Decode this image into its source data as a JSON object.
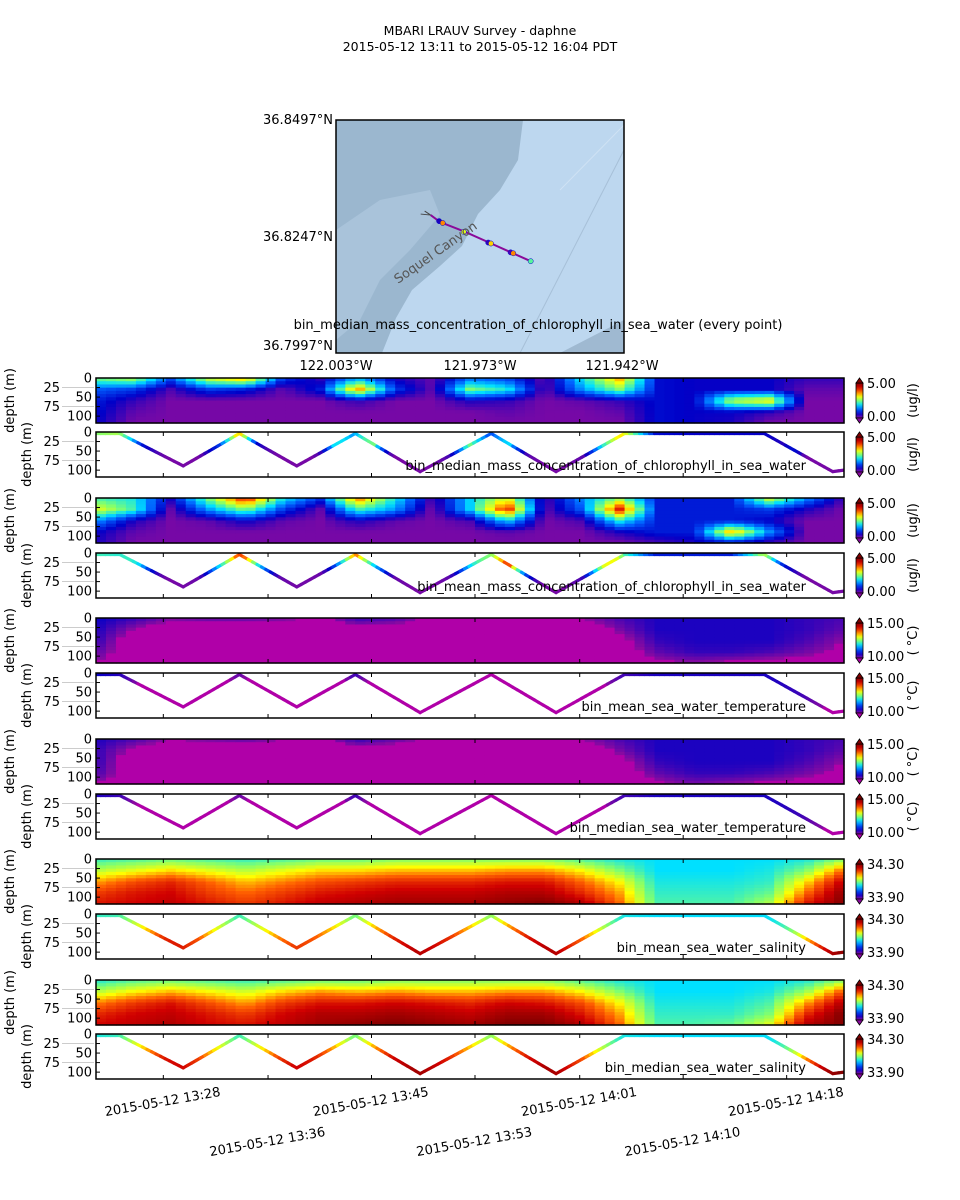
{
  "title": {
    "line1": "MBARI LRAUV Survey - daphne",
    "line2": "2015-05-12 13:11  to  2015-05-12 16:04 PDT"
  },
  "map": {
    "lat_labels": [
      "36.8497°N",
      "36.8247°N",
      "36.7997°N"
    ],
    "lon_labels": [
      "122.003°W",
      "121.973°W",
      "121.942°W"
    ],
    "feature_label": "Soquel Canyon",
    "caption": "bin_median_mass_concentration_of_chlorophyll_in_sea_water (every point)",
    "xlim": [
      -122.0061,
      -121.9416
    ],
    "ylim": [
      36.7997,
      36.8497
    ],
    "track": [
      [
        -121.9849,
        36.8293
      ],
      [
        -121.9828,
        36.8278
      ],
      [
        -121.9772,
        36.8257
      ],
      [
        -121.9716,
        36.8233
      ],
      [
        -121.9667,
        36.8212
      ],
      [
        -121.9625,
        36.8194
      ]
    ],
    "markers": [
      {
        "lon": -121.983,
        "lat": 36.828,
        "value": 0.5
      },
      {
        "lon": -121.9822,
        "lat": 36.8276,
        "value": 3.6
      },
      {
        "lon": -121.9775,
        "lat": 36.8257,
        "value": 3.0
      },
      {
        "lon": -121.972,
        "lat": 36.8234,
        "value": 0.4
      },
      {
        "lon": -121.9714,
        "lat": 36.8232,
        "value": 3.3
      },
      {
        "lon": -121.967,
        "lat": 36.8213,
        "value": 0.3
      },
      {
        "lon": -121.9664,
        "lat": 36.8211,
        "value": 3.6
      },
      {
        "lon": -121.9625,
        "lat": 36.8194,
        "value": 2.3
      }
    ]
  },
  "chart_data": {
    "type": "heatmap",
    "x_unit": "minutes after 13:00 PDT",
    "xlim": [
      22.6,
      82.6
    ],
    "ylim": [
      118,
      0
    ],
    "ylabel": "depth (m)",
    "yticks": [
      0,
      25,
      50,
      75,
      100
    ],
    "xticks": [
      {
        "value": 28.0,
        "label": "2015-05-12 13:28"
      },
      {
        "value": 36.4,
        "label": "2015-05-12 13:36"
      },
      {
        "value": 44.7,
        "label": "2015-05-12 13:45"
      },
      {
        "value": 53.0,
        "label": "2015-05-12 13:53"
      },
      {
        "value": 61.4,
        "label": "2015-05-12 14:01"
      },
      {
        "value": 69.7,
        "label": "2015-05-12 14:10"
      },
      {
        "value": 78.0,
        "label": "2015-05-12 14:18"
      }
    ],
    "colormap": [
      "#8c0aa0",
      "#0000c8",
      "#0060ff",
      "#00e0ff",
      "#80ff70",
      "#ffff00",
      "#ff6000",
      "#d00000",
      "#800000"
    ],
    "track": [
      [
        22.6,
        0
      ],
      [
        24.5,
        0
      ],
      [
        29.6,
        85
      ],
      [
        34.1,
        0
      ],
      [
        38.7,
        85
      ],
      [
        43.4,
        0
      ],
      [
        48.6,
        100
      ],
      [
        54.3,
        0
      ],
      [
        59.5,
        100
      ],
      [
        65.0,
        0
      ],
      [
        76.2,
        0
      ],
      [
        81.7,
        100
      ],
      [
        82.6,
        96
      ]
    ],
    "grid_times": [
      22.6,
      25.6,
      28.6,
      31.6,
      34.6,
      37.6,
      40.6,
      43.6,
      46.6,
      49.6,
      52.6,
      55.6,
      58.6,
      61.6,
      64.6,
      67.6,
      70.6,
      73.6,
      76.6,
      79.6,
      82.6
    ],
    "grid_depths": [
      0,
      30,
      60,
      90,
      118
    ],
    "grids": {
      "chl_median": [
        [
          2.5,
          1.2,
          0.8,
          0.7,
          0.6
        ],
        [
          2.8,
          1.0,
          0.4,
          0.2,
          0.1
        ],
        [
          1.2,
          0.3,
          0.1,
          0.1,
          0.1
        ],
        [
          3.0,
          1.0,
          0.1,
          0.1,
          0.1
        ],
        [
          3.6,
          0.8,
          0.1,
          0.1,
          0.1
        ],
        [
          1.0,
          0.2,
          0.1,
          0.1,
          0.1
        ],
        [
          0.4,
          0.8,
          0.1,
          0.1,
          0.1
        ],
        [
          1.5,
          3.6,
          0.4,
          0.1,
          0.1
        ],
        [
          0.5,
          1.0,
          0.1,
          0.1,
          0.1
        ],
        [
          0.2,
          0.2,
          0.1,
          0.1,
          0.1
        ],
        [
          1.2,
          2.5,
          0.5,
          0.1,
          0.1
        ],
        [
          1.0,
          2.0,
          0.4,
          0.2,
          0.1
        ],
        [
          0.2,
          0.2,
          0.1,
          0.1,
          0.1
        ],
        [
          2.0,
          1.5,
          0.2,
          0.1,
          0.1
        ],
        [
          3.5,
          2.5,
          0.4,
          0.2,
          0.1
        ],
        [
          0.7,
          0.7,
          0.7,
          0.7,
          0.7
        ],
        [
          0.6,
          0.6,
          0.6,
          0.6,
          0.6
        ],
        [
          0.6,
          0.6,
          2.8,
          0.6,
          0.5
        ],
        [
          0.6,
          0.6,
          3.2,
          0.4,
          0.1
        ],
        [
          0.4,
          0.2,
          0.1,
          0.1,
          0.1
        ],
        [
          0.4,
          0.2,
          0.1,
          0.1,
          0.1
        ]
      ],
      "chl_mean": [
        [
          2.2,
          3.0,
          1.5,
          0.6,
          0.5
        ],
        [
          2.0,
          2.2,
          0.5,
          0.2,
          0.1
        ],
        [
          0.6,
          0.2,
          0.1,
          0.1,
          0.1
        ],
        [
          2.5,
          1.5,
          0.2,
          0.1,
          0.1
        ],
        [
          4.3,
          2.5,
          0.6,
          0.1,
          0.1
        ],
        [
          2.0,
          1.0,
          0.2,
          0.1,
          0.1
        ],
        [
          1.0,
          0.2,
          0.1,
          0.1,
          0.1
        ],
        [
          3.8,
          2.2,
          0.5,
          0.1,
          0.1
        ],
        [
          2.0,
          1.5,
          0.2,
          0.1,
          0.1
        ],
        [
          0.3,
          0.1,
          0.1,
          0.1,
          0.1
        ],
        [
          1.8,
          1.8,
          0.3,
          0.1,
          0.1
        ],
        [
          3.0,
          4.2,
          1.8,
          0.2,
          0.1
        ],
        [
          0.3,
          0.2,
          0.1,
          0.1,
          0.1
        ],
        [
          1.5,
          1.2,
          0.3,
          0.1,
          0.1
        ],
        [
          2.5,
          4.2,
          2.0,
          0.5,
          0.1
        ],
        [
          0.8,
          0.8,
          0.8,
          0.8,
          0.3
        ],
        [
          0.8,
          0.8,
          0.8,
          0.8,
          0.5
        ],
        [
          0.8,
          0.8,
          0.8,
          3.5,
          0.6
        ],
        [
          3.0,
          1.0,
          0.6,
          1.5,
          0.3
        ],
        [
          1.5,
          0.5,
          0.1,
          0.1,
          0.1
        ],
        [
          0.3,
          0.1,
          0.1,
          0.1,
          0.1
        ]
      ],
      "temp_mean": [
        [
          10.6,
          10.5,
          10.4,
          10.2,
          10.0
        ],
        [
          10.4,
          10.0,
          9.7,
          9.7,
          9.7
        ],
        [
          10.1,
          9.7,
          9.7,
          9.7,
          9.7
        ],
        [
          10.2,
          9.7,
          9.7,
          9.7,
          9.7
        ],
        [
          10.2,
          9.7,
          9.7,
          9.7,
          9.7
        ],
        [
          10.1,
          9.7,
          9.7,
          9.7,
          9.7
        ],
        [
          9.9,
          9.7,
          9.7,
          9.7,
          9.7
        ],
        [
          10.4,
          9.8,
          9.7,
          9.7,
          9.7
        ],
        [
          10.3,
          9.7,
          9.7,
          9.7,
          9.7
        ],
        [
          9.9,
          9.7,
          9.7,
          9.7,
          9.7
        ],
        [
          9.9,
          9.7,
          9.7,
          9.7,
          9.7
        ],
        [
          10.0,
          9.7,
          9.7,
          9.7,
          9.7
        ],
        [
          9.9,
          9.7,
          9.7,
          9.7,
          9.7
        ],
        [
          10.0,
          9.7,
          9.7,
          9.7,
          9.7
        ],
        [
          10.3,
          10.1,
          9.8,
          9.7,
          9.7
        ],
        [
          10.5,
          10.5,
          10.4,
          10.2,
          9.9
        ],
        [
          10.5,
          10.5,
          10.5,
          10.4,
          10.0
        ],
        [
          10.5,
          10.5,
          10.5,
          10.4,
          9.9
        ],
        [
          10.5,
          10.5,
          10.5,
          10.3,
          9.8
        ],
        [
          10.4,
          10.4,
          10.3,
          10.1,
          9.8
        ],
        [
          10.3,
          10.2,
          10.0,
          9.9,
          9.7
        ]
      ],
      "temp_median": [
        [
          10.5,
          10.4,
          10.4,
          10.3,
          10.0
        ],
        [
          10.3,
          9.9,
          9.7,
          9.7,
          9.7
        ],
        [
          10.0,
          9.7,
          9.7,
          9.7,
          9.7
        ],
        [
          10.1,
          9.7,
          9.7,
          9.7,
          9.7
        ],
        [
          10.2,
          9.7,
          9.7,
          9.7,
          9.7
        ],
        [
          10.0,
          9.7,
          9.7,
          9.7,
          9.7
        ],
        [
          9.9,
          9.7,
          9.7,
          9.7,
          9.7
        ],
        [
          10.4,
          9.8,
          9.7,
          9.7,
          9.7
        ],
        [
          10.2,
          9.7,
          9.7,
          9.7,
          9.7
        ],
        [
          9.9,
          9.7,
          9.7,
          9.7,
          9.7
        ],
        [
          9.9,
          9.7,
          9.7,
          9.7,
          9.7
        ],
        [
          10.0,
          9.7,
          9.7,
          9.7,
          9.7
        ],
        [
          9.9,
          9.7,
          9.7,
          9.7,
          9.7
        ],
        [
          10.0,
          9.7,
          9.7,
          9.7,
          9.7
        ],
        [
          10.3,
          10.1,
          9.8,
          9.7,
          9.7
        ],
        [
          10.5,
          10.5,
          10.4,
          10.2,
          9.9
        ],
        [
          10.5,
          10.5,
          10.5,
          10.4,
          10.1
        ],
        [
          10.5,
          10.5,
          10.5,
          10.4,
          10.0
        ],
        [
          10.5,
          10.5,
          10.5,
          10.3,
          9.9
        ],
        [
          10.4,
          10.4,
          10.3,
          10.1,
          9.8
        ],
        [
          10.3,
          10.2,
          10.0,
          9.9,
          9.7
        ]
      ],
      "sal_mean": [
        [
          34.07,
          34.12,
          34.18,
          34.22,
          34.24
        ],
        [
          34.08,
          34.14,
          34.21,
          34.24,
          34.25
        ],
        [
          34.09,
          34.16,
          34.23,
          34.25,
          34.26
        ],
        [
          34.08,
          34.14,
          34.2,
          34.22,
          34.24
        ],
        [
          34.07,
          34.12,
          34.17,
          34.2,
          34.22
        ],
        [
          34.08,
          34.14,
          34.19,
          34.22,
          34.24
        ],
        [
          34.09,
          34.16,
          34.21,
          34.24,
          34.26
        ],
        [
          34.09,
          34.16,
          34.22,
          34.25,
          34.27
        ],
        [
          34.1,
          34.17,
          34.23,
          34.26,
          34.28
        ],
        [
          34.1,
          34.17,
          34.23,
          34.26,
          34.28
        ],
        [
          34.1,
          34.17,
          34.23,
          34.26,
          34.28
        ],
        [
          34.1,
          34.18,
          34.24,
          34.27,
          34.29
        ],
        [
          34.1,
          34.18,
          34.24,
          34.27,
          34.3
        ],
        [
          34.08,
          34.15,
          34.2,
          34.23,
          34.27
        ],
        [
          34.06,
          34.1,
          34.15,
          34.18,
          34.2
        ],
        [
          34.05,
          34.05,
          34.06,
          34.07,
          34.08
        ],
        [
          34.05,
          34.05,
          34.06,
          34.07,
          34.08
        ],
        [
          34.05,
          34.05,
          34.06,
          34.07,
          34.08
        ],
        [
          34.05,
          34.06,
          34.07,
          34.09,
          34.12
        ],
        [
          34.06,
          34.1,
          34.16,
          34.2,
          34.24
        ],
        [
          34.1,
          34.2,
          34.26,
          34.29,
          34.3
        ]
      ],
      "sal_median": [
        [
          34.06,
          34.12,
          34.19,
          34.23,
          34.25
        ],
        [
          34.08,
          34.15,
          34.22,
          34.25,
          34.26
        ],
        [
          34.09,
          34.17,
          34.24,
          34.26,
          34.27
        ],
        [
          34.08,
          34.15,
          34.21,
          34.24,
          34.25
        ],
        [
          34.07,
          34.13,
          34.18,
          34.22,
          34.24
        ],
        [
          34.08,
          34.16,
          34.22,
          34.25,
          34.26
        ],
        [
          34.09,
          34.18,
          34.24,
          34.27,
          34.28
        ],
        [
          34.09,
          34.17,
          34.24,
          34.27,
          34.29
        ],
        [
          34.1,
          34.18,
          34.25,
          34.28,
          34.3
        ],
        [
          34.1,
          34.17,
          34.24,
          34.27,
          34.29
        ],
        [
          34.1,
          34.17,
          34.23,
          34.26,
          34.28
        ],
        [
          34.1,
          34.18,
          34.25,
          34.28,
          34.3
        ],
        [
          34.1,
          34.18,
          34.24,
          34.28,
          34.3
        ],
        [
          34.08,
          34.15,
          34.21,
          34.24,
          34.27
        ],
        [
          34.06,
          34.1,
          34.15,
          34.18,
          34.2
        ],
        [
          34.05,
          34.05,
          34.06,
          34.07,
          34.08
        ],
        [
          34.05,
          34.05,
          34.06,
          34.07,
          34.08
        ],
        [
          34.05,
          34.05,
          34.06,
          34.07,
          34.09
        ],
        [
          34.05,
          34.06,
          34.08,
          34.1,
          34.14
        ],
        [
          34.06,
          34.11,
          34.18,
          34.23,
          34.27
        ],
        [
          34.1,
          34.21,
          34.27,
          34.3,
          34.3
        ]
      ]
    },
    "panels": [
      {
        "kind": "heatmap",
        "grid": "chl_median",
        "clim": [
          0,
          5
        ],
        "cbar_labels": [
          "5.00",
          "0.00"
        ],
        "units": "(ug/l)",
        "label": ""
      },
      {
        "kind": "track",
        "grid": "chl_median",
        "clim": [
          0,
          5
        ],
        "cbar_labels": [
          "5.00",
          "0.00"
        ],
        "units": "(ug/l)",
        "label": "bin_median_mass_concentration_of_chlorophyll_in_sea_water"
      },
      {
        "kind": "heatmap",
        "grid": "chl_mean",
        "clim": [
          0,
          5
        ],
        "cbar_labels": [
          "5.00",
          "0.00"
        ],
        "units": "(ug/l)",
        "label": ""
      },
      {
        "kind": "track",
        "grid": "chl_mean",
        "clim": [
          0,
          5
        ],
        "cbar_labels": [
          "5.00",
          "0.00"
        ],
        "units": "(ug/l)",
        "label": "bin_mean_mass_concentration_of_chlorophyll_in_sea_water"
      },
      {
        "kind": "heatmap",
        "grid": "temp_mean",
        "clim": [
          10,
          15
        ],
        "cbar_labels": [
          "15.00",
          "10.00"
        ],
        "units": "( °C)",
        "label": "",
        "under_color": "#b000a8"
      },
      {
        "kind": "track",
        "grid": "temp_mean",
        "clim": [
          10,
          15
        ],
        "cbar_labels": [
          "15.00",
          "10.00"
        ],
        "units": "( °C)",
        "label": "bin_mean_sea_water_temperature",
        "under_color": "#b000a8"
      },
      {
        "kind": "heatmap",
        "grid": "temp_median",
        "clim": [
          10,
          15
        ],
        "cbar_labels": [
          "15.00",
          "10.00"
        ],
        "units": "( °C)",
        "label": "",
        "under_color": "#b000a8"
      },
      {
        "kind": "track",
        "grid": "temp_median",
        "clim": [
          10,
          15
        ],
        "cbar_labels": [
          "15.00",
          "10.00"
        ],
        "units": "( °C)",
        "label": "bin_median_sea_water_temperature",
        "under_color": "#b000a8"
      },
      {
        "kind": "heatmap",
        "grid": "sal_mean",
        "clim": [
          33.9,
          34.3
        ],
        "cbar_labels": [
          "34.30",
          "33.90"
        ],
        "units": "",
        "label": ""
      },
      {
        "kind": "track",
        "grid": "sal_mean",
        "clim": [
          33.9,
          34.3
        ],
        "cbar_labels": [
          "34.30",
          "33.90"
        ],
        "units": "",
        "label": "bin_mean_sea_water_salinity"
      },
      {
        "kind": "heatmap",
        "grid": "sal_median",
        "clim": [
          33.9,
          34.3
        ],
        "cbar_labels": [
          "34.30",
          "33.90"
        ],
        "units": "",
        "label": ""
      },
      {
        "kind": "track",
        "grid": "sal_median",
        "clim": [
          33.9,
          34.3
        ],
        "cbar_labels": [
          "34.30",
          "33.90"
        ],
        "units": "",
        "label": "bin_median_sea_water_salinity"
      }
    ]
  }
}
